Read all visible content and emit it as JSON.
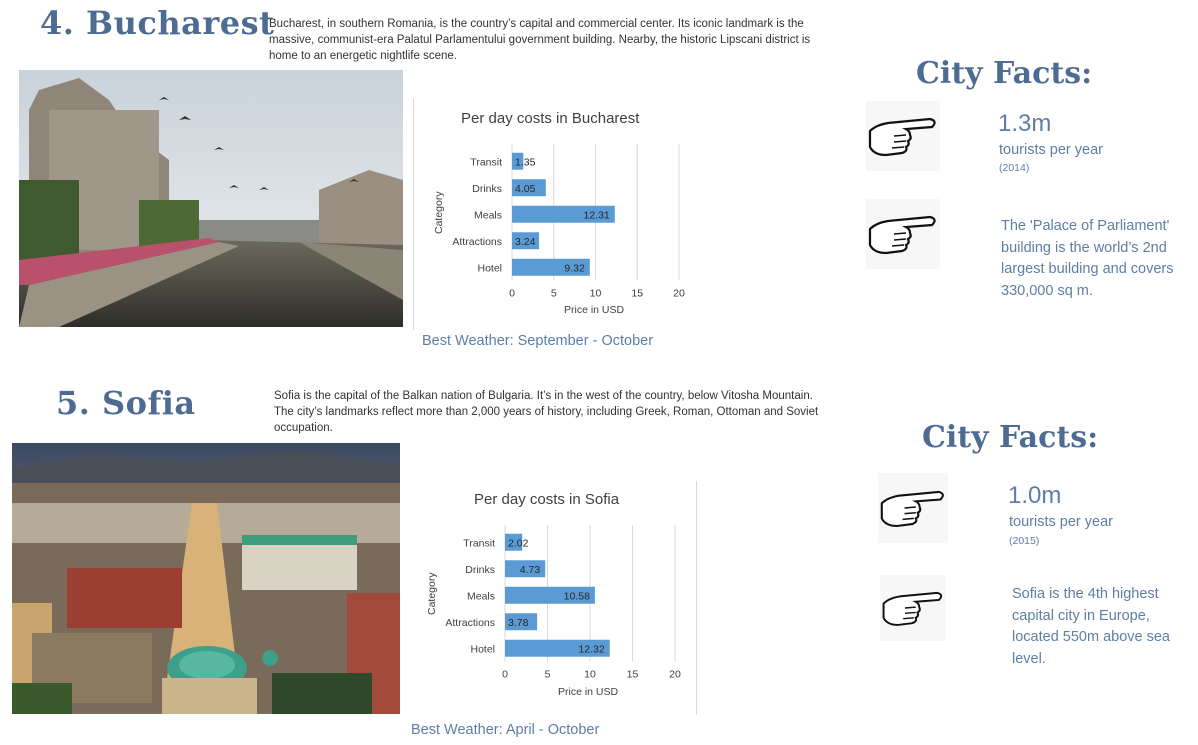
{
  "sections": [
    {
      "title": "4. Bucharest",
      "description": "Bucharest, in southern Romania, is the country’s capital and commercial center. Its iconic landmark is the massive, communist-era Palatul Parlamentului government building. Nearby, the historic Lipscani district is home to an energetic nightlife scene.",
      "weather": "Best Weather: September - October",
      "facts_title": "City Facts:",
      "facts": {
        "visitors_value": "1.3m",
        "visitors_label": "tourists per year",
        "visitors_year": "(2014)",
        "fact_text": "The 'Palace of Parliament' building is the world’s 2nd largest building and covers 330,000 sq m."
      }
    },
    {
      "title": "5. Sofia",
      "description": "Sofia is the capital of the Balkan nation of Bulgaria. It’s in the west of the country, below Vitosha Mountain. The city’s landmarks reflect more than 2,000 years of history, including Greek, Roman, Ottoman and Soviet occupation.",
      "weather": "Best Weather: April - October",
      "facts_title": "City Facts:",
      "facts": {
        "visitors_value": "1.0m",
        "visitors_label": "tourists per year",
        "visitors_year": "(2015)",
        "fact_text": "Sofia is the 4th highest capital city in Europe, located 550m above sea level."
      }
    }
  ],
  "colors": {
    "bar": "#5b9bd5",
    "accent": "#4e6c93",
    "text_blue": "#5f7ea4"
  },
  "icons": [
    "pointing-hand-icon"
  ],
  "chart_data": [
    {
      "type": "bar",
      "orientation": "horizontal",
      "title": "Per day costs in Bucharest",
      "xlabel": "Price in USD",
      "ylabel": "Category",
      "categories": [
        "Transit",
        "Drinks",
        "Meals",
        "Attractions",
        "Hotel"
      ],
      "values": [
        1.35,
        4.05,
        12.31,
        3.24,
        9.32
      ],
      "xlim": [
        0,
        20
      ],
      "xticks": [
        0,
        5,
        10,
        15,
        20
      ],
      "grid": true
    },
    {
      "type": "bar",
      "orientation": "horizontal",
      "title": "Per day costs in Sofia",
      "xlabel": "Price in USD",
      "ylabel": "Category",
      "categories": [
        "Transit",
        "Drinks",
        "Meals",
        "Attractions",
        "Hotel"
      ],
      "values": [
        2.02,
        4.73,
        10.58,
        3.78,
        12.32
      ],
      "xlim": [
        0,
        20
      ],
      "xticks": [
        0,
        5,
        10,
        15,
        20
      ],
      "grid": true
    }
  ]
}
